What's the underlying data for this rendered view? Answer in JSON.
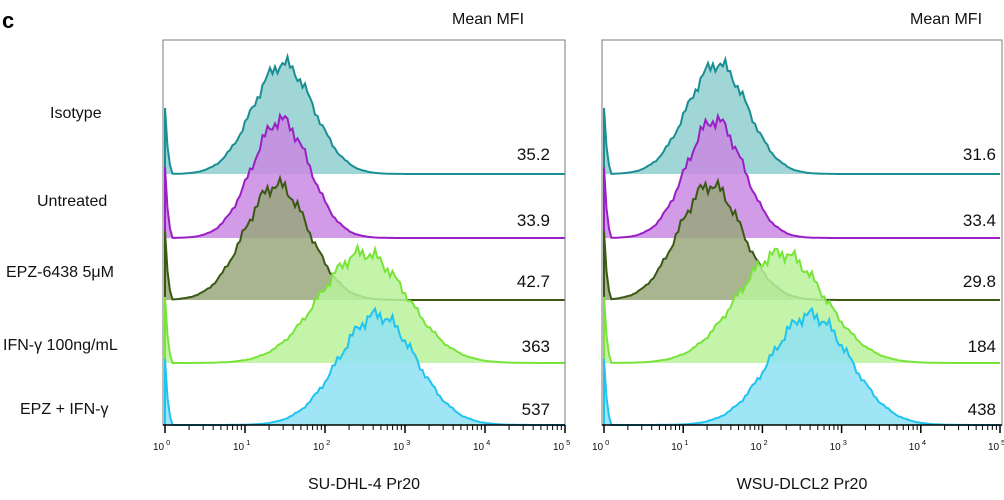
{
  "panel_label": "c",
  "row_labels": [
    "Isotype",
    "Untreated",
    "EPZ-6438 5μM",
    "IFN-γ 100ng/mL",
    "EPZ + IFN-γ"
  ],
  "chart_data": {
    "type": "area",
    "description": "Stacked flow-cytometry histograms of PD-L1 staining (Pr20); x axis is log fluorescence, each row a treatment, right-hand column lists mean MFI.",
    "x_scale": "log",
    "xlim": [
      1,
      100000
    ],
    "x_ticks": [
      {
        "base": "10",
        "exp": "0",
        "value": 1
      },
      {
        "base": "10",
        "exp": "1",
        "value": 10
      },
      {
        "base": "10",
        "exp": "2",
        "value": 100
      },
      {
        "base": "10",
        "exp": "3",
        "value": 1000
      },
      {
        "base": "10",
        "exp": "4",
        "value": 10000
      },
      {
        "base": "10",
        "exp": "5",
        "value": 100000
      }
    ],
    "series_colors": {
      "Isotype": {
        "stroke": "#1a8f93",
        "fill": "#8fcfcf"
      },
      "Untreated": {
        "stroke": "#9a1fc4",
        "fill": "#c98ae3"
      },
      "EPZ-6438 5μM": {
        "stroke": "#3a5a14",
        "fill": "#9aa77e"
      },
      "IFN-γ 100ng/mL": {
        "stroke": "#78e43a",
        "fill": "#b9f29a"
      },
      "EPZ + IFN-γ": {
        "stroke": "#21c4ee",
        "fill": "#8fe0f5"
      }
    },
    "panels": [
      {
        "xlabel": "SU-DHL-4 Pr20",
        "mfi_header": "Mean MFI",
        "mfi_values": [
          "35.2",
          "33.9",
          "42.7",
          "363",
          "537"
        ],
        "rows": [
          {
            "peak": 30,
            "width": 0.38
          },
          {
            "peak": 28,
            "width": 0.36
          },
          {
            "peak": 25,
            "width": 0.4
          },
          {
            "peak": 300,
            "width": 0.55
          },
          {
            "peak": 450,
            "width": 0.48
          }
        ]
      },
      {
        "xlabel": "WSU-DLCL2 Pr20",
        "mfi_header": "Mean MFI",
        "mfi_values": [
          "31.6",
          "33.4",
          "29.8",
          "184",
          "438"
        ],
        "rows": [
          {
            "peak": 27,
            "width": 0.38
          },
          {
            "peak": 25,
            "width": 0.36
          },
          {
            "peak": 22,
            "width": 0.4
          },
          {
            "peak": 170,
            "width": 0.55
          },
          {
            "peak": 400,
            "width": 0.5
          }
        ]
      }
    ]
  }
}
